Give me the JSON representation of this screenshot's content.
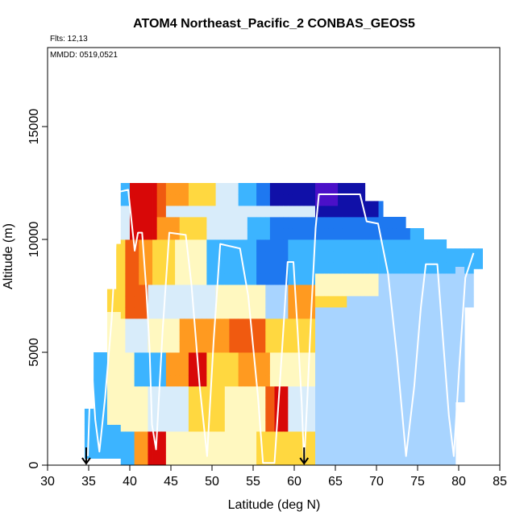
{
  "chart_data": {
    "type": "heatmap",
    "title": "ATOM4 Northeast_Pacific_2 CONBAS_GEOS5",
    "annotations": [
      "Flts: 12,13",
      "MMDD: 0519,0521"
    ],
    "xlabel": "Latitude (deg N)",
    "ylabel": "Altitude (m)",
    "xlim": [
      30,
      85
    ],
    "ylim": [
      0,
      18500
    ],
    "xticks": [
      "30",
      "35",
      "40",
      "45",
      "50",
      "55",
      "60",
      "65",
      "70",
      "75",
      "80",
      "85"
    ],
    "xtick_values": [
      30,
      35,
      40,
      45,
      50,
      55,
      60,
      65,
      70,
      75,
      80,
      85
    ],
    "yticks": [
      "0",
      "5000",
      "10000",
      "15000"
    ],
    "ytick_values": [
      0,
      5000,
      10000,
      15000
    ],
    "grid": false,
    "legend": "none",
    "markers": [
      {
        "label": "arrow-down",
        "x": 34.7
      },
      {
        "label": "arrow-down",
        "x": 61.2
      }
    ],
    "colors": {
      "deep_purple": "#4b10c8",
      "navy": "#1010a8",
      "blue": "#1e78f0",
      "sky": "#3cb4ff",
      "light_blue": "#a8d4ff",
      "pale_blue": "#d8ecfa",
      "pale_yellow": "#fff8c0",
      "yellow": "#ffd840",
      "orange": "#ff9a20",
      "red_orange": "#f05a10",
      "red": "#d80808",
      "flight_track": "#ffffff"
    },
    "flight_track": [
      {
        "x": 34.9,
        "y": 400
      },
      {
        "x": 35.3,
        "y": 4800
      },
      {
        "x": 35.8,
        "y": 2000
      },
      {
        "x": 36.3,
        "y": 600
      },
      {
        "x": 37.0,
        "y": 3000
      },
      {
        "x": 37.8,
        "y": 6500
      },
      {
        "x": 38.6,
        "y": 12100
      },
      {
        "x": 39.8,
        "y": 12200
      },
      {
        "x": 40.6,
        "y": 9500
      },
      {
        "x": 41.0,
        "y": 10300
      },
      {
        "x": 41.5,
        "y": 10300
      },
      {
        "x": 42.0,
        "y": 7800
      },
      {
        "x": 42.4,
        "y": 5200
      },
      {
        "x": 42.7,
        "y": 1800
      },
      {
        "x": 43.2,
        "y": 700
      },
      {
        "x": 44.0,
        "y": 6000
      },
      {
        "x": 44.8,
        "y": 10300
      },
      {
        "x": 46.8,
        "y": 10200
      },
      {
        "x": 47.5,
        "y": 8000
      },
      {
        "x": 48.5,
        "y": 3500
      },
      {
        "x": 49.4,
        "y": 400
      },
      {
        "x": 50.2,
        "y": 5500
      },
      {
        "x": 51.0,
        "y": 9800
      },
      {
        "x": 53.4,
        "y": 9600
      },
      {
        "x": 54.4,
        "y": 7500
      },
      {
        "x": 55.6,
        "y": 3000
      },
      {
        "x": 56.2,
        "y": 100
      },
      {
        "x": 57.6,
        "y": 100
      },
      {
        "x": 58.5,
        "y": 5000
      },
      {
        "x": 59.2,
        "y": 9000
      },
      {
        "x": 59.9,
        "y": 9000
      },
      {
        "x": 60.4,
        "y": 6000
      },
      {
        "x": 60.9,
        "y": 2800
      },
      {
        "x": 61.2,
        "y": 100
      },
      {
        "x": 61.6,
        "y": 3000
      },
      {
        "x": 62.1,
        "y": 7000
      },
      {
        "x": 62.6,
        "y": 10500
      },
      {
        "x": 63.0,
        "y": 12000
      },
      {
        "x": 68.0,
        "y": 12000
      },
      {
        "x": 68.8,
        "y": 10800
      },
      {
        "x": 70.2,
        "y": 10700
      },
      {
        "x": 71.4,
        "y": 8500
      },
      {
        "x": 72.5,
        "y": 4800
      },
      {
        "x": 73.6,
        "y": 400
      },
      {
        "x": 74.6,
        "y": 3500
      },
      {
        "x": 75.4,
        "y": 7000
      },
      {
        "x": 76.0,
        "y": 8900
      },
      {
        "x": 77.4,
        "y": 8900
      },
      {
        "x": 78.0,
        "y": 6000
      },
      {
        "x": 78.8,
        "y": 2200
      },
      {
        "x": 79.4,
        "y": 400
      },
      {
        "x": 80.1,
        "y": 4500
      },
      {
        "x": 80.8,
        "y": 8300
      },
      {
        "x": 81.8,
        "y": 9400
      }
    ]
  }
}
